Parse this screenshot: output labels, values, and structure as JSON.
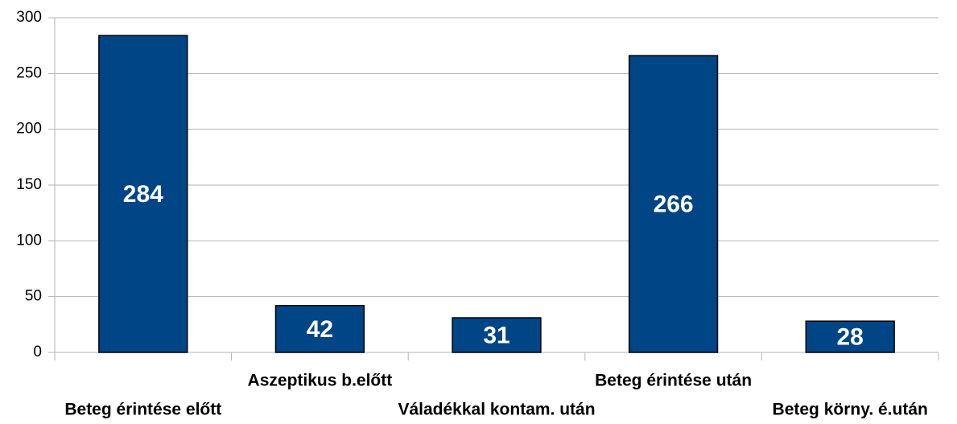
{
  "chart_data": {
    "type": "bar",
    "categories": [
      "Beteg érintése előtt",
      "Aszeptikus b.előtt",
      "Váladékkal kontam. után",
      "Beteg érintése után",
      "Beteg körny. é.után"
    ],
    "values": [
      284,
      42,
      31,
      266,
      28
    ],
    "color": "#004586",
    "ylim": [
      0,
      300
    ],
    "yticks": [
      0,
      50,
      100,
      150,
      200,
      250,
      300
    ],
    "grid": true
  }
}
